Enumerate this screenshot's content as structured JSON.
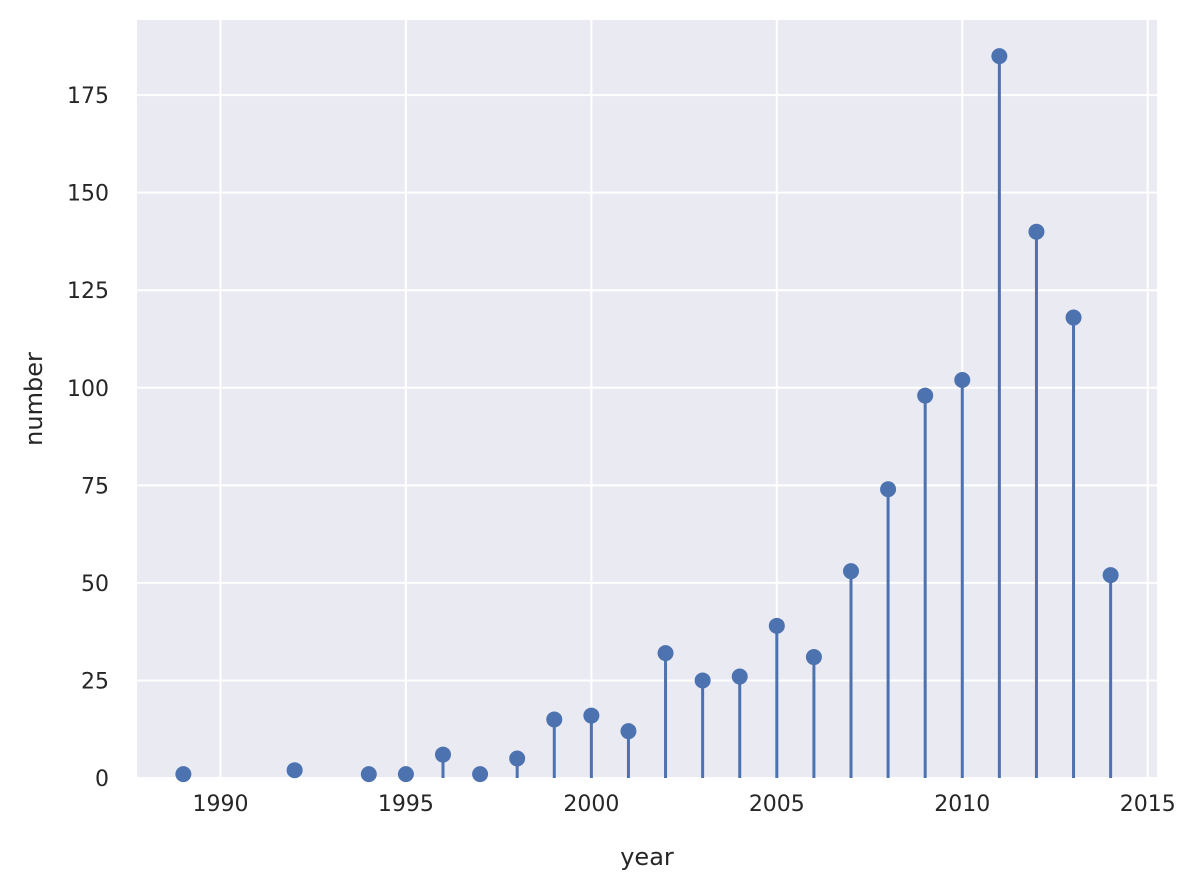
{
  "chart_data": {
    "type": "stem",
    "title": "",
    "xlabel": "year",
    "ylabel": "number",
    "xlim": [
      1987.75,
      2015.25
    ],
    "ylim": [
      0,
      194.25
    ],
    "xticks": [
      1990,
      1995,
      2000,
      2005,
      2010,
      2015
    ],
    "yticks": [
      0,
      25,
      50,
      75,
      100,
      125,
      150,
      175
    ],
    "grid": true,
    "colors": {
      "stem": "#4c72b0",
      "background": "#eaeaf2",
      "grid": "#ffffff",
      "text": "#262626"
    },
    "series": [
      {
        "x": [
          1989,
          1992,
          1994,
          1995,
          1996,
          1997,
          1998,
          1999,
          2000,
          2001,
          2002,
          2003,
          2004,
          2005,
          2006,
          2007,
          2008,
          2009,
          2010,
          2011,
          2012,
          2013,
          2014
        ],
        "y": [
          1,
          2,
          1,
          1,
          6,
          1,
          5,
          15,
          16,
          12,
          32,
          25,
          26,
          39,
          31,
          53,
          74,
          98,
          102,
          185,
          140,
          118,
          52
        ]
      }
    ]
  }
}
